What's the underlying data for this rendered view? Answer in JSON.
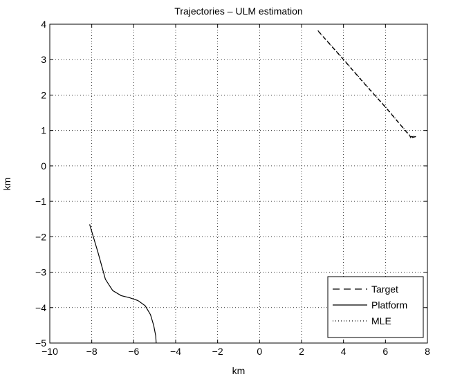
{
  "chart_data": {
    "type": "line",
    "title": "Trajectories – ULM estimation",
    "xlabel": "km",
    "ylabel": "km",
    "xlim": [
      -10,
      8
    ],
    "ylim": [
      -5,
      4
    ],
    "xticks": [
      -10,
      -8,
      -6,
      -4,
      -2,
      0,
      2,
      4,
      6,
      8
    ],
    "yticks": [
      -5,
      -4,
      -3,
      -2,
      -1,
      0,
      1,
      2,
      3,
      4
    ],
    "xtick_labels": [
      "−10",
      "−8",
      "−6",
      "−4",
      "−2",
      "0",
      "2",
      "4",
      "6",
      "8"
    ],
    "ytick_labels": [
      "−5",
      "−4",
      "−3",
      "−2",
      "−1",
      "0",
      "1",
      "2",
      "3",
      "4"
    ],
    "grid": true,
    "legend_position": "bottom-right",
    "series": [
      {
        "name": "Target",
        "style": "dashed",
        "color": "#000000",
        "x": [
          2.8,
          4.0,
          5.0,
          6.0,
          7.2,
          7.45,
          7.15
        ],
        "y": [
          3.8,
          3.0,
          2.32,
          1.66,
          0.82,
          0.83,
          0.78
        ]
      },
      {
        "name": "Platform",
        "style": "solid",
        "color": "#000000",
        "x": [
          -8.1,
          -7.7,
          -7.35,
          -7.0,
          -6.6,
          -6.2,
          -5.8,
          -5.45,
          -5.2,
          -5.05,
          -4.95,
          -4.93
        ],
        "y": [
          -1.65,
          -2.45,
          -3.2,
          -3.52,
          -3.66,
          -3.72,
          -3.8,
          -3.95,
          -4.2,
          -4.5,
          -4.8,
          -5.0
        ]
      },
      {
        "name": "MLE",
        "style": "dotted",
        "color": "#000000",
        "x": [
          2.78,
          4.0,
          5.0,
          6.0,
          7.2,
          7.4,
          7.15
        ],
        "y": [
          3.82,
          3.01,
          2.33,
          1.67,
          0.83,
          0.84,
          0.79
        ]
      }
    ]
  }
}
